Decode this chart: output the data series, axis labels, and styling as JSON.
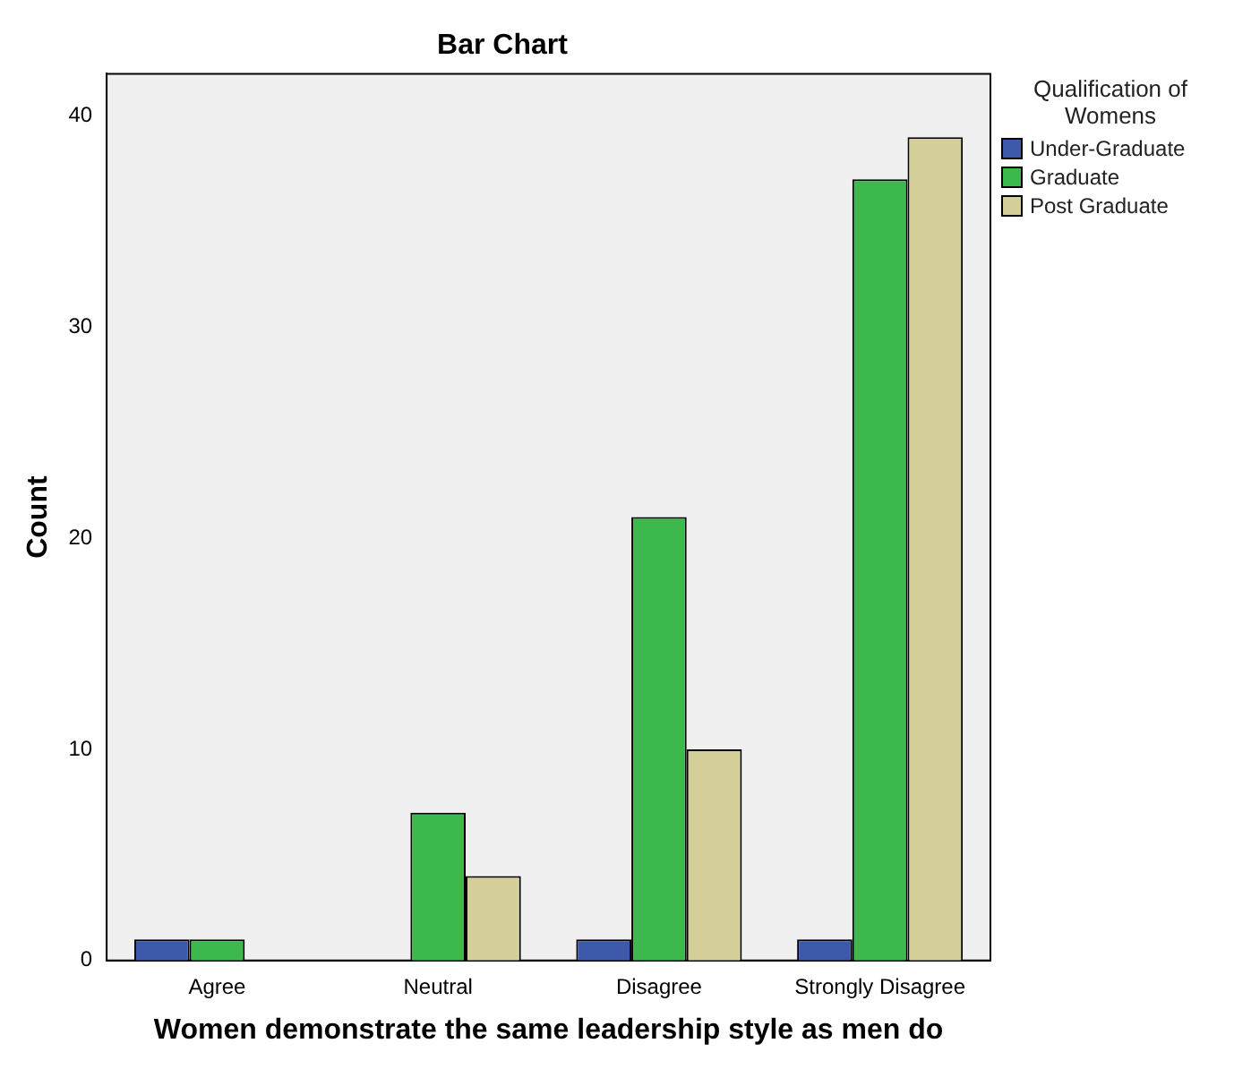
{
  "chart_data": {
    "type": "bar",
    "title": "Bar Chart",
    "xlabel": "Women demonstrate the same leadership style as men do",
    "ylabel": "Count",
    "legend_title": "Qualification of Womens",
    "categories": [
      "Agree",
      "Neutral",
      "Disagree",
      "Strongly Disagree"
    ],
    "series": [
      {
        "name": "Under-Graduate",
        "color": "#3e58ac",
        "values": [
          1,
          null,
          1,
          1
        ]
      },
      {
        "name": "Graduate",
        "color": "#3cb84c",
        "values": [
          1,
          7,
          21,
          37
        ]
      },
      {
        "name": "Post Graduate",
        "color": "#d4cf98",
        "values": [
          null,
          4,
          10,
          39
        ]
      }
    ],
    "ylim": [
      0,
      42
    ],
    "yticks": [
      0,
      10,
      20,
      30,
      40
    ],
    "grid": false,
    "legend": "top right"
  }
}
